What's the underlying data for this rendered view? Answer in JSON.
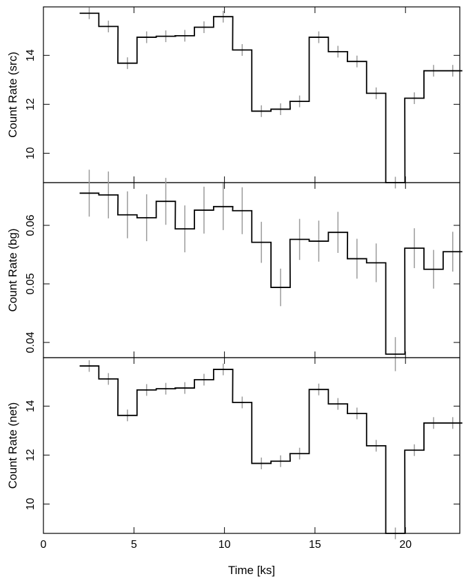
{
  "chart_data": {
    "type": "line",
    "xlabel": "Time [ks]",
    "x_ticks": [
      0,
      5,
      10,
      15,
      20
    ],
    "xlim": [
      0,
      23.0
    ],
    "bin_edges": [
      2.0,
      3.06,
      4.11,
      5.17,
      6.23,
      7.28,
      8.34,
      9.4,
      10.45,
      11.51,
      12.57,
      13.62,
      14.68,
      15.74,
      16.79,
      17.85,
      18.91,
      19.96,
      21.02,
      22.08
    ],
    "panels": [
      {
        "ylabel": "Count Rate (src)",
        "ylim": [
          8.8,
          15.98
        ],
        "y_ticks": [
          10,
          12,
          14
        ],
        "values": [
          15.72,
          15.18,
          13.68,
          14.74,
          14.78,
          14.8,
          15.15,
          15.58,
          14.22,
          11.72,
          11.8,
          12.12,
          14.74,
          14.15,
          13.75,
          12.45,
          8.8,
          12.25,
          13.37,
          13.37
        ],
        "errors": [
          0.07,
          0.07,
          0.07,
          0.07,
          0.07,
          0.07,
          0.07,
          0.07,
          0.07,
          0.07,
          0.07,
          0.07,
          0.07,
          0.07,
          0.07,
          0.07,
          0.07,
          0.07,
          0.07,
          0.07
        ]
      },
      {
        "ylabel": "Count Rate (bg)",
        "ylim": [
          0.0374,
          0.0673
        ],
        "y_ticks": [
          0.04,
          0.05,
          0.06
        ],
        "values": [
          0.0655,
          0.0652,
          0.0618,
          0.0613,
          0.0641,
          0.0594,
          0.0626,
          0.0632,
          0.0625,
          0.0571,
          0.0494,
          0.0576,
          0.0573,
          0.0588,
          0.0543,
          0.0536,
          0.038,
          0.0561,
          0.0525,
          0.0555
        ],
        "errors": [
          0.0033,
          0.0033,
          0.0033,
          0.0033,
          0.0033,
          0.0033,
          0.0033,
          0.0033,
          0.0033,
          0.0028,
          0.0025,
          0.0028,
          0.0028,
          0.0028,
          0.0027,
          0.0026,
          0.0022,
          0.0027,
          0.0026,
          0.0027
        ]
      },
      {
        "ylabel": "Count Rate (net)",
        "ylim": [
          8.8,
          15.98
        ],
        "y_ticks": [
          10,
          12,
          14
        ],
        "values": [
          15.64,
          15.11,
          13.62,
          14.66,
          14.71,
          14.74,
          15.08,
          15.5,
          14.15,
          11.66,
          11.75,
          12.06,
          14.68,
          14.09,
          13.7,
          12.38,
          8.8,
          12.2,
          13.31,
          13.31
        ],
        "errors": [
          0.07,
          0.07,
          0.07,
          0.07,
          0.07,
          0.07,
          0.07,
          0.07,
          0.07,
          0.07,
          0.07,
          0.07,
          0.07,
          0.07,
          0.07,
          0.07,
          0.07,
          0.07,
          0.07,
          0.07
        ]
      }
    ]
  },
  "colors": {
    "step_line": "#000000",
    "error_bar": "#9a9a9a",
    "frame": "#000000"
  }
}
